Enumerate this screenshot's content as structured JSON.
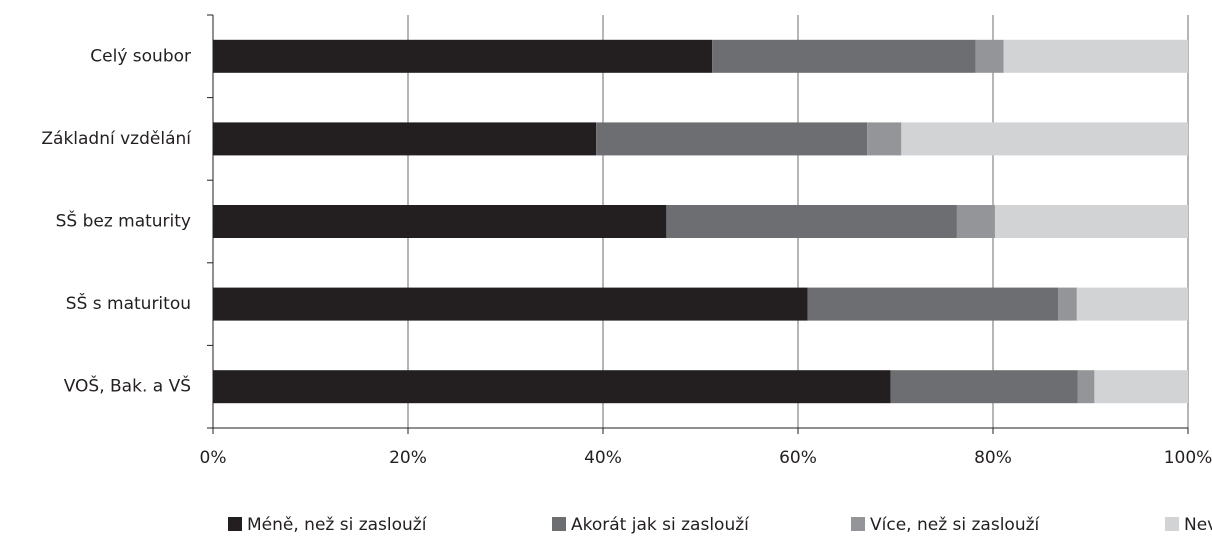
{
  "chart_data": {
    "type": "stacked-barh",
    "categories": [
      "Celý soubor",
      "Základní vzdělání",
      "SŠ bez maturity",
      "SŠ s maturitou",
      "VOŠ, Bak. a VŠ"
    ],
    "series": [
      {
        "name": "Méně, než si zaslouží",
        "color": "#231f20",
        "values": [
          51.2,
          39.3,
          46.5,
          61.0,
          69.5
        ]
      },
      {
        "name": "Akorát jak si zaslouží",
        "color": "#6d6e71",
        "values": [
          27.0,
          27.8,
          29.8,
          25.7,
          19.2
        ]
      },
      {
        "name": "Více, než si zaslouží",
        "color": "#939598",
        "values": [
          2.9,
          3.5,
          3.9,
          1.9,
          1.7
        ]
      },
      {
        "name": "Neví",
        "color": "#d1d3d4",
        "values": [
          18.9,
          29.4,
          19.8,
          11.4,
          9.6
        ]
      }
    ],
    "xlim": [
      0,
      100
    ],
    "xticks": [
      {
        "value": 0,
        "label": "0%"
      },
      {
        "value": 20,
        "label": "20%"
      },
      {
        "value": 40,
        "label": "40%"
      },
      {
        "value": 60,
        "label": "60%"
      },
      {
        "value": 80,
        "label": "80%"
      },
      {
        "value": 100,
        "label": "100%"
      }
    ],
    "grid": true,
    "legend": "bottom"
  }
}
